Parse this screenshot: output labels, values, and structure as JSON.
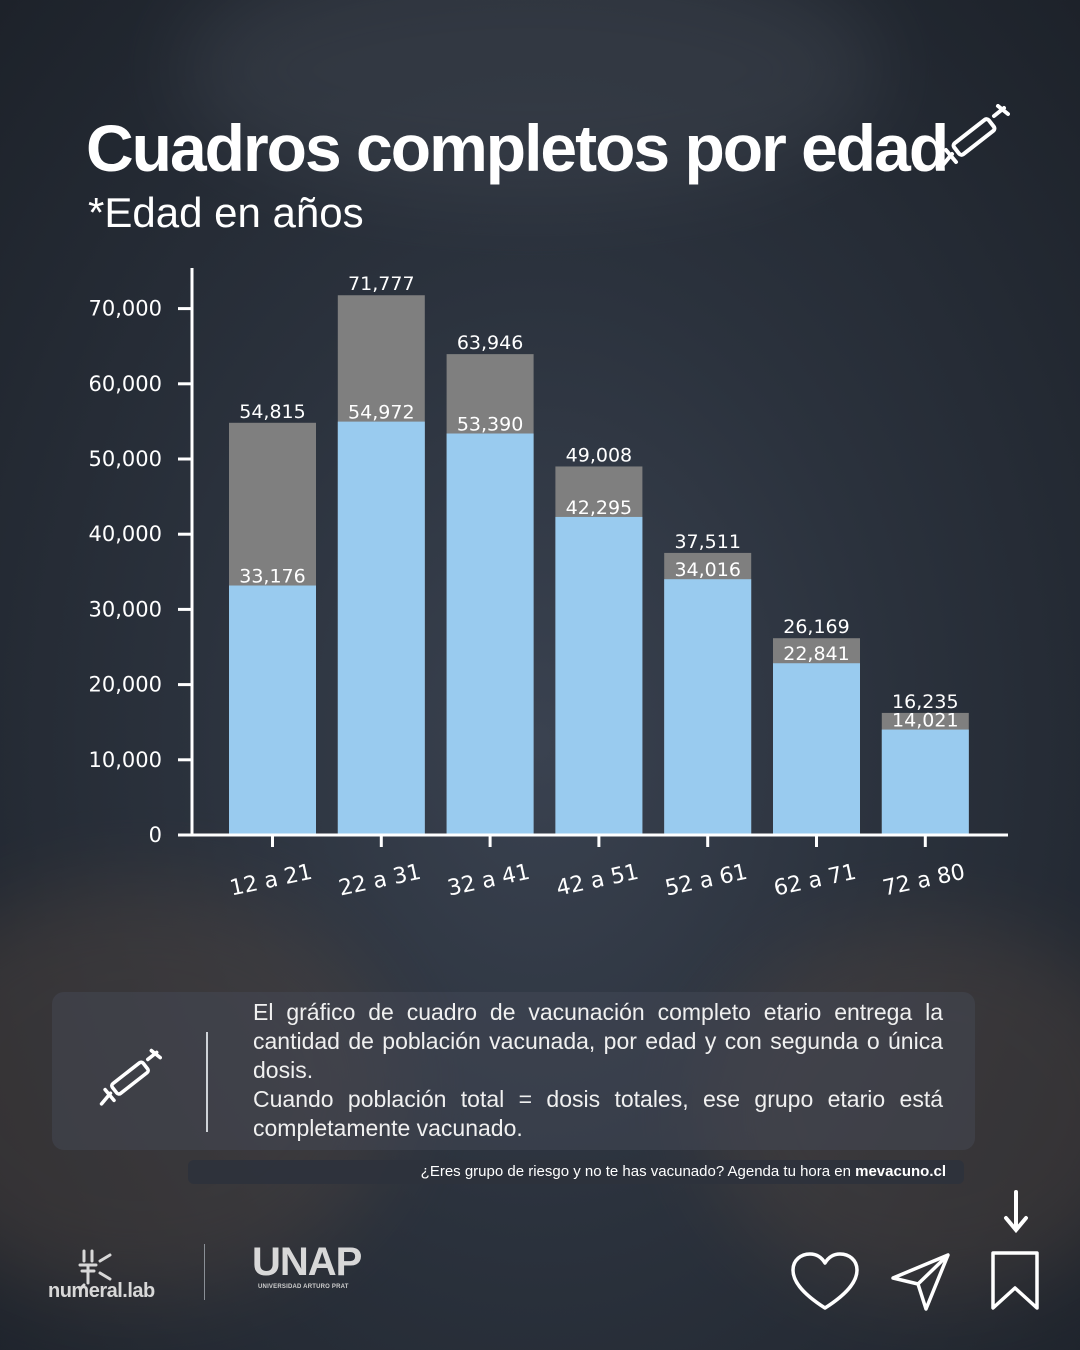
{
  "title": "Cuadros completos por edad",
  "subtitle": "*Edad en años",
  "colors": {
    "total": "#7f7f7f",
    "vaccinated": "#99cbef",
    "axis": "#ffffff"
  },
  "chart_data": {
    "type": "bar",
    "stacked": "overlay",
    "categories": [
      "12 a 21",
      "22 a 31",
      "32 a 41",
      "42 a 51",
      "52 a 61",
      "62 a 71",
      "72 a 80"
    ],
    "series": [
      {
        "values": [
          54815,
          71777,
          63946,
          49008,
          37511,
          26169,
          16235
        ]
      },
      {
        "values": [
          33176,
          54972,
          53390,
          42295,
          34016,
          22841,
          14021
        ]
      }
    ],
    "yticks": [
      "0",
      "10,000",
      "20,000",
      "30,000",
      "40,000",
      "50,000",
      "60,000",
      "70,000"
    ],
    "ytick_values": [
      0,
      10000,
      20000,
      30000,
      40000,
      50000,
      60000,
      70000
    ],
    "ylim": [
      0,
      75000
    ],
    "grid": false,
    "legend": "none"
  },
  "info": {
    "paragraph1": "El gráfico de cuadro de vacunación completo etario entrega la cantidad de población vacunada, por edad y con segunda o única dosis.",
    "paragraph2": "Cuando población total = dosis totales, ese grupo etario está completamente vacunado."
  },
  "cta": {
    "text": "¿Eres grupo de riesgo y no te has vacunado? Agenda tu hora en ",
    "link": "mevacuno.cl"
  },
  "brands": {
    "numeral": "numeral.lab",
    "unap": "UNAP",
    "unap_sub": "UNIVERSIDAD ARTURO PRAT"
  },
  "icons": [
    "syringe-icon",
    "heart-icon",
    "send-icon",
    "bookmark-icon",
    "arrow-down-icon"
  ]
}
